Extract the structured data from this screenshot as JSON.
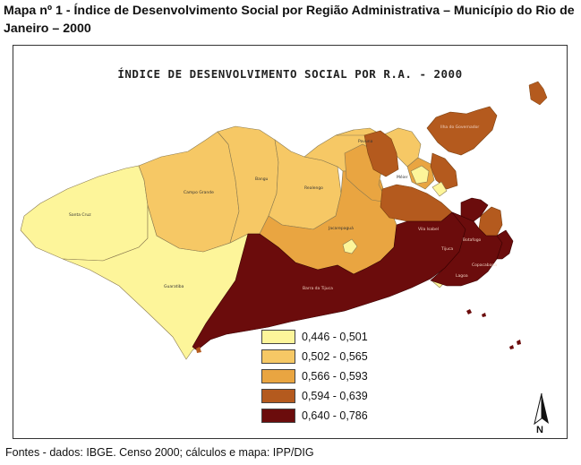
{
  "header": {
    "title": "Mapa nº 1 - Índice de Desenvolvimento Social por Região Administrativa – Município do Rio de Janeiro – 2000"
  },
  "map": {
    "title": "ÍNDICE DE DESENVOLVIMENTO SOCIAL POR R.A. - 2000",
    "region_labels": [
      "Santa Cruz",
      "Guaratiba",
      "Campo Grande",
      "Bangu",
      "Realengo",
      "Barra da Tijuca",
      "Jacarepaguá",
      "Ilha do Governador",
      "Pavuna",
      "Méier",
      "Tijuca",
      "Vila Isabel",
      "Botafogo",
      "Copacabana",
      "Lagoa"
    ],
    "legend": {
      "items": [
        {
          "label": "0,446 - 0,501",
          "color": "#fdf59a"
        },
        {
          "label": "0,502 - 0,565",
          "color": "#f6c865"
        },
        {
          "label": "0,566 - 0,593",
          "color": "#e9a541"
        },
        {
          "label": "0,594 - 0,639",
          "color": "#b45a1e"
        },
        {
          "label": "0,640 - 0,786",
          "color": "#6b0c0c"
        }
      ]
    },
    "north_label": "N"
  },
  "footer": {
    "source": "Fontes - dados: IBGE. Censo 2000; cálculos e mapa: IPP/DIG"
  }
}
